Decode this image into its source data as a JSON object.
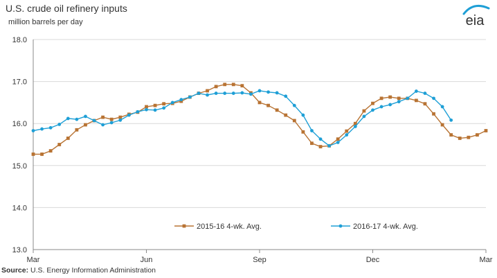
{
  "header": {
    "title": "U.S. crude oil refinery inputs",
    "subtitle": "million barrels per day"
  },
  "logo": {
    "text": "eia",
    "icon": "eia-logo-icon"
  },
  "source": {
    "label": "Source:",
    "text": "U.S. Energy Information Administration"
  },
  "chart_data": {
    "type": "line",
    "title": "U.S. crude oil refinery inputs",
    "ylabel": "million barrels per day",
    "xlabel": "",
    "ylim": [
      13.0,
      18.0
    ],
    "yticks": [
      "13.0",
      "14.0",
      "15.0",
      "16.0",
      "17.0",
      "18.0"
    ],
    "x_index_range": [
      0,
      52
    ],
    "xticks": [
      {
        "label": "Mar",
        "index": 0
      },
      {
        "label": "Jun",
        "index": 13
      },
      {
        "label": "Sep",
        "index": 26
      },
      {
        "label": "Dec",
        "index": 39
      },
      {
        "label": "Mar",
        "index": 52
      }
    ],
    "grid": true,
    "legend_position": "bottom",
    "series": [
      {
        "name": "2015-16  4-wk. Avg.",
        "color": "#B87333",
        "marker": "square",
        "values": [
          15.27,
          15.27,
          15.35,
          15.5,
          15.65,
          15.85,
          15.97,
          16.07,
          16.15,
          16.1,
          16.15,
          16.22,
          16.27,
          16.4,
          16.43,
          16.47,
          16.48,
          16.53,
          16.63,
          16.72,
          16.78,
          16.88,
          16.93,
          16.93,
          16.9,
          16.73,
          16.5,
          16.43,
          16.32,
          16.2,
          16.07,
          15.8,
          15.53,
          15.45,
          15.47,
          15.63,
          15.82,
          16.0,
          16.3,
          16.48,
          16.6,
          16.63,
          16.6,
          16.6,
          16.55,
          16.47,
          16.23,
          15.97,
          15.73,
          15.65,
          15.67,
          15.73,
          15.83
        ]
      },
      {
        "name": "2016-17  4-wk. Avg.",
        "color": "#1E9FD6",
        "marker": "circle",
        "values": [
          15.83,
          15.87,
          15.9,
          15.98,
          16.12,
          16.1,
          16.17,
          16.07,
          15.97,
          16.02,
          16.08,
          16.2,
          16.28,
          16.33,
          16.32,
          16.37,
          16.5,
          16.57,
          16.63,
          16.72,
          16.68,
          16.72,
          16.72,
          16.72,
          16.73,
          16.7,
          16.78,
          16.75,
          16.73,
          16.65,
          16.43,
          16.2,
          15.83,
          15.63,
          15.47,
          15.55,
          15.73,
          15.93,
          16.17,
          16.32,
          16.4,
          16.45,
          16.52,
          16.6,
          16.77,
          16.72,
          16.6,
          16.4,
          16.08
        ]
      }
    ]
  }
}
